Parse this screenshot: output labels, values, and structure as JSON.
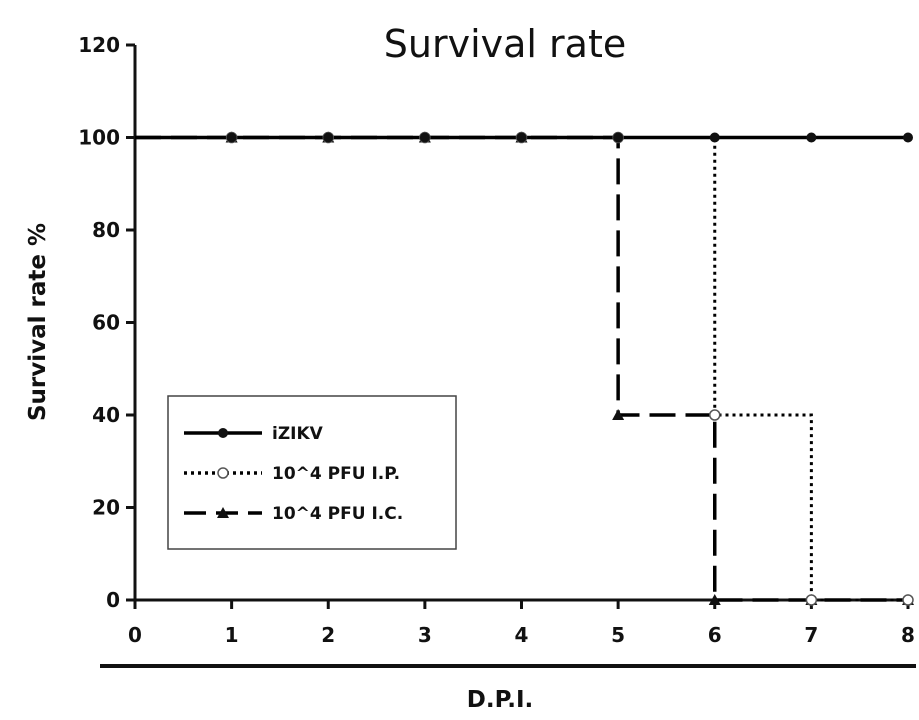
{
  "chart_data": {
    "type": "line",
    "title": "Survival rate",
    "xlabel": "D.P.I.",
    "ylabel": "Survival rate %",
    "xlim": [
      0,
      8
    ],
    "ylim": [
      0,
      120
    ],
    "x_ticks": [
      "0",
      "1",
      "2",
      "3",
      "4",
      "5",
      "6",
      "7",
      "8"
    ],
    "y_ticks": [
      "0",
      "20",
      "40",
      "60",
      "80",
      "100",
      "120"
    ],
    "grid": false,
    "legend_position": "bottom-left",
    "series": [
      {
        "name": "iZIKV",
        "style": "solid",
        "marker": "filled-circle",
        "color": "#000000",
        "x": [
          0,
          1,
          2,
          3,
          4,
          5,
          6,
          7,
          8
        ],
        "y": [
          100,
          100,
          100,
          100,
          100,
          100,
          100,
          100,
          100
        ]
      },
      {
        "name": "10^4 PFU I.P.",
        "style": "dotted",
        "marker": "open-circle",
        "color": "#000000",
        "x": [
          0,
          1,
          2,
          3,
          4,
          5,
          6,
          7,
          8
        ],
        "y": [
          100,
          100,
          100,
          100,
          100,
          100,
          40,
          0,
          0
        ]
      },
      {
        "name": "10^4 PFU I.C.",
        "style": "dashed",
        "marker": "filled-triangle",
        "color": "#000000",
        "x": [
          0,
          1,
          2,
          3,
          4,
          5,
          6,
          7,
          8
        ],
        "y": [
          100,
          100,
          100,
          100,
          100,
          40,
          0,
          0,
          0
        ]
      }
    ]
  }
}
